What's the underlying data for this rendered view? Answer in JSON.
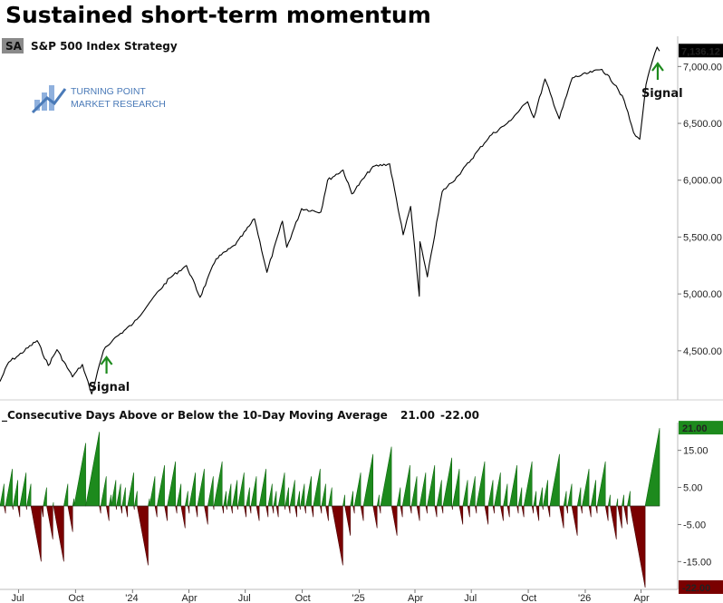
{
  "title": "Sustained short-term momentum",
  "logo": {
    "line1": "TURNING POINT",
    "line2": "MARKET RESEARCH",
    "color": "#4a7ab8"
  },
  "chart_data": [
    {
      "type": "line",
      "symbol_badge": "SA",
      "legend": "S&P 500 Index  Strategy",
      "series_color": "#000000",
      "last_value_label": "7,136.12",
      "yticks": [
        4500,
        5000,
        5500,
        6000,
        6500,
        7000
      ],
      "ytick_labels": [
        "4,500.00",
        "5,000.00",
        "5,500.00",
        "6,000.00",
        "6,500.00",
        "7,000.00"
      ],
      "ylim": [
        4100,
        7250
      ],
      "points": [
        [
          "2023-06-01",
          4230
        ],
        [
          "2023-06-15",
          4400
        ],
        [
          "2023-07-01",
          4460
        ],
        [
          "2023-07-31",
          4590
        ],
        [
          "2023-08-18",
          4370
        ],
        [
          "2023-09-01",
          4510
        ],
        [
          "2023-09-26",
          4270
        ],
        [
          "2023-10-12",
          4380
        ],
        [
          "2023-10-27",
          4120
        ],
        [
          "2023-11-15",
          4500
        ],
        [
          "2023-12-01",
          4600
        ],
        [
          "2024-01-02",
          4740
        ],
        [
          "2024-02-01",
          4950
        ],
        [
          "2024-03-01",
          5140
        ],
        [
          "2024-03-28",
          5250
        ],
        [
          "2024-04-19",
          4970
        ],
        [
          "2024-05-15",
          5310
        ],
        [
          "2024-06-15",
          5430
        ],
        [
          "2024-07-16",
          5660
        ],
        [
          "2024-08-05",
          5190
        ],
        [
          "2024-08-30",
          5640
        ],
        [
          "2024-09-06",
          5410
        ],
        [
          "2024-09-30",
          5750
        ],
        [
          "2024-10-31",
          5720
        ],
        [
          "2024-11-11",
          6000
        ],
        [
          "2024-12-06",
          6090
        ],
        [
          "2024-12-20",
          5880
        ],
        [
          "2025-01-23",
          6120
        ],
        [
          "2025-02-19",
          6145
        ],
        [
          "2025-03-13",
          5520
        ],
        [
          "2025-03-25",
          5770
        ],
        [
          "2025-04-08",
          4980
        ],
        [
          "2025-04-09",
          5460
        ],
        [
          "2025-04-21",
          5150
        ],
        [
          "2025-05-15",
          5900
        ],
        [
          "2025-06-10",
          6040
        ],
        [
          "2025-07-31",
          6390
        ],
        [
          "2025-08-28",
          6500
        ],
        [
          "2025-09-30",
          6690
        ],
        [
          "2025-10-10",
          6550
        ],
        [
          "2025-10-28",
          6890
        ],
        [
          "2025-11-20",
          6540
        ],
        [
          "2025-12-11",
          6900
        ],
        [
          "2026-01-12",
          6950
        ],
        [
          "2026-01-28",
          6975
        ],
        [
          "2026-02-20",
          6830
        ],
        [
          "2026-03-05",
          6700
        ],
        [
          "2026-03-20",
          6420
        ],
        [
          "2026-03-30",
          6360
        ],
        [
          "2026-04-09",
          6840
        ],
        [
          "2026-04-20",
          7060
        ],
        [
          "2026-04-27",
          7170
        ],
        [
          "2026-05-01",
          7136.12
        ]
      ],
      "signals": [
        {
          "date": "2023-11-20",
          "label": "Signal"
        },
        {
          "date": "2026-04-28",
          "label": "Signal"
        }
      ]
    },
    {
      "type": "bar",
      "legend": "Consecutive Days Above or Below the 10-Day Moving Average",
      "pos_label": "21.00",
      "neg_label": "-22.00",
      "pos_color": "#1d8a1d",
      "neg_color": "#7a0000",
      "yticks": [
        15,
        5,
        -5,
        -15
      ],
      "ytick_labels": [
        "15.00",
        "5.00",
        "-5.00",
        "-15.00"
      ],
      "ylim": [
        -23,
        22
      ],
      "runs": [
        6,
        -2,
        10,
        -1,
        7,
        -3,
        9,
        -1,
        6,
        -15,
        -3,
        5,
        -9,
        1,
        -15,
        6,
        -7,
        2,
        17,
        20,
        -2,
        8,
        -4,
        3,
        7,
        -1,
        6,
        -2,
        5,
        -3,
        9,
        -1,
        4,
        -16,
        2,
        8,
        -3,
        11,
        -4,
        12,
        -2,
        6,
        -6,
        4,
        -2,
        9,
        -3,
        10,
        -5,
        8,
        -1,
        12,
        -2,
        4,
        -1,
        6,
        -2,
        7,
        -1,
        9,
        -3,
        5,
        -2,
        8,
        -4,
        10,
        -3,
        6,
        -2,
        4,
        -3,
        9,
        -1,
        5,
        -2,
        7,
        -3,
        4,
        -1,
        6,
        -2,
        8,
        -3,
        10,
        -2,
        6,
        -4,
        5,
        -16,
        3,
        -8,
        4,
        -2,
        9,
        -4,
        14,
        -6,
        3,
        -2,
        16,
        -8,
        5,
        -3,
        11,
        -2,
        8,
        -4,
        9,
        -2,
        11,
        -3,
        7,
        -2,
        13,
        -1,
        10,
        -5,
        7,
        -3,
        8,
        -2,
        12,
        -5,
        7,
        -2,
        9,
        -4,
        6,
        -3,
        11,
        -2,
        5,
        -3,
        12,
        -2,
        4,
        -4,
        5,
        -1,
        7,
        -3,
        14,
        -6,
        4,
        -2,
        6,
        -8,
        5,
        -2,
        10,
        -3,
        7,
        -2,
        12,
        -4,
        3,
        -9,
        2,
        -6,
        3,
        -5,
        4,
        -22,
        21
      ]
    }
  ],
  "x_axis": {
    "ticks": [
      "2023-07-01",
      "2023-10-01",
      "2024-01-01",
      "2024-04-01",
      "2024-07-01",
      "2024-10-01",
      "2025-01-01",
      "2025-04-01",
      "2025-07-01",
      "2025-10-01",
      "2026-01-01",
      "2026-04-01"
    ],
    "tick_labels": [
      "Jul",
      "Oct",
      "'24",
      "Apr",
      "Jul",
      "Oct",
      "'25",
      "Apr",
      "Jul",
      "Oct",
      "'26",
      "Apr"
    ]
  }
}
